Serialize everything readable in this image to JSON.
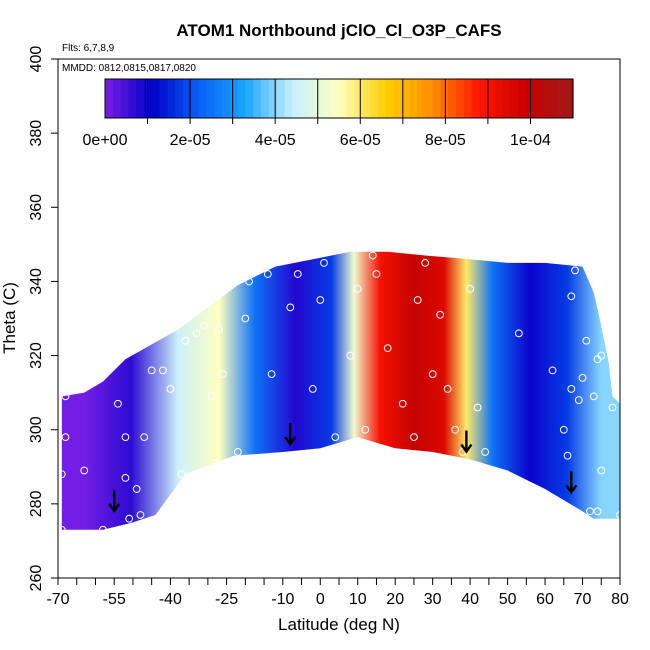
{
  "chart_data": {
    "type": "heatmap",
    "title": "ATOM1 Northbound jClO_Cl_O3P_CAFS",
    "flights_text": "Flts: 6,7,8,9",
    "dates_text": "MMDD: 0812,0815,0817,0820",
    "xlabel": "Latitude (deg N)",
    "ylabel": "Theta (C)",
    "xlim": [
      -70,
      80
    ],
    "ylim": [
      260,
      400
    ],
    "x_ticks": [
      -70,
      -55,
      -40,
      -25,
      -10,
      0,
      10,
      20,
      30,
      40,
      50,
      60,
      70,
      80
    ],
    "y_ticks": [
      260,
      280,
      300,
      320,
      340,
      360,
      380,
      400
    ],
    "colorbar": {
      "min": 0,
      "max": 0.00011,
      "tick_values": [
        0,
        2e-05,
        4e-05,
        6e-05,
        8e-05,
        0.0001
      ],
      "tick_labels": [
        "0e+00",
        "2e-05",
        "4e-05",
        "6e-05",
        "8e-05",
        "1e-04"
      ],
      "colors": [
        "#7a1fe6",
        "#0000c8",
        "#0a5ef5",
        "#19a6ff",
        "#c8f0ff",
        "#ffffc0",
        "#ffd000",
        "#ff8c00",
        "#ff1500",
        "#c80000",
        "#9e1a1a"
      ]
    },
    "domain_outline": {
      "lower_boundary": [
        [
          -69,
          273
        ],
        [
          -58,
          273
        ],
        [
          -50,
          275
        ],
        [
          -44,
          277
        ],
        [
          -36,
          288
        ],
        [
          -23,
          293
        ],
        [
          -10,
          294
        ],
        [
          0,
          295
        ],
        [
          10,
          298
        ],
        [
          20,
          295
        ],
        [
          30,
          294
        ],
        [
          40,
          292
        ],
        [
          50,
          289
        ],
        [
          60,
          284
        ],
        [
          70,
          278
        ],
        [
          73,
          276
        ],
        [
          80,
          276
        ]
      ],
      "upper_boundary": [
        [
          -69,
          309
        ],
        [
          -63,
          310
        ],
        [
          -58,
          313
        ],
        [
          -52,
          319
        ],
        [
          -45,
          323
        ],
        [
          -38,
          327
        ],
        [
          -30,
          333
        ],
        [
          -22,
          339
        ],
        [
          -12,
          344
        ],
        [
          -2,
          346
        ],
        [
          8,
          348
        ],
        [
          18,
          348
        ],
        [
          28,
          347
        ],
        [
          40,
          346
        ],
        [
          50,
          345
        ],
        [
          60,
          345
        ],
        [
          70,
          344
        ],
        [
          73,
          337
        ],
        [
          75,
          328
        ],
        [
          77,
          318
        ],
        [
          78,
          309
        ],
        [
          80,
          307
        ]
      ]
    },
    "field_bands": [
      {
        "x": [
          -69,
          -57
        ],
        "value": 5e-07
      },
      {
        "x": [
          -57,
          -44
        ],
        "value": 7e-06
      },
      {
        "x": [
          -44,
          -32
        ],
        "value": 4.5e-05
      },
      {
        "x": [
          -32,
          -22
        ],
        "value": 5.5e-05
      },
      {
        "x": [
          -22,
          -13
        ],
        "value": 2.5e-05
      },
      {
        "x": [
          -13,
          0
        ],
        "value": 8e-06
      },
      {
        "x": [
          0,
          6
        ],
        "value": 1.8e-05
      },
      {
        "x": [
          6,
          12
        ],
        "value": 5.2e-05
      },
      {
        "x": [
          12,
          20
        ],
        "value": 9e-05
      },
      {
        "x": [
          20,
          30
        ],
        "value": 0.0001
      },
      {
        "x": [
          30,
          36
        ],
        "value": 9.5e-05
      },
      {
        "x": [
          36,
          42
        ],
        "value": 6e-05
      },
      {
        "x": [
          42,
          50
        ],
        "value": 2.5e-05
      },
      {
        "x": [
          50,
          62
        ],
        "value": 1e-05
      },
      {
        "x": [
          62,
          70
        ],
        "value": 1.8e-05
      },
      {
        "x": [
          70,
          80
        ],
        "value": 4e-05
      }
    ],
    "sample_points": [
      [
        -69,
        273
      ],
      [
        -69,
        288
      ],
      [
        -68,
        298
      ],
      [
        -68,
        309
      ],
      [
        -63,
        289
      ],
      [
        -58,
        273
      ],
      [
        -54,
        307
      ],
      [
        -52,
        298
      ],
      [
        -52,
        287
      ],
      [
        -51,
        276
      ],
      [
        -49,
        284
      ],
      [
        -48,
        277
      ],
      [
        -47,
        298
      ],
      [
        -45,
        316
      ],
      [
        -42,
        316
      ],
      [
        -40,
        311
      ],
      [
        -37,
        288
      ],
      [
        -36,
        324
      ],
      [
        -33,
        326
      ],
      [
        -31,
        328
      ],
      [
        -29,
        309
      ],
      [
        -28,
        291
      ],
      [
        -27,
        327
      ],
      [
        -26,
        315
      ],
      [
        -22,
        294
      ],
      [
        -20,
        330
      ],
      [
        -19,
        340
      ],
      [
        -14,
        342
      ],
      [
        -13,
        315
      ],
      [
        -8,
        333
      ],
      [
        -6,
        342
      ],
      [
        -2,
        311
      ],
      [
        0,
        335
      ],
      [
        1,
        345
      ],
      [
        4,
        298
      ],
      [
        8,
        320
      ],
      [
        10,
        338
      ],
      [
        12,
        300
      ],
      [
        14,
        347
      ],
      [
        15,
        342
      ],
      [
        18,
        322
      ],
      [
        22,
        307
      ],
      [
        25,
        298
      ],
      [
        26,
        335
      ],
      [
        28,
        345
      ],
      [
        30,
        315
      ],
      [
        32,
        331
      ],
      [
        34,
        311
      ],
      [
        36,
        300
      ],
      [
        38,
        294
      ],
      [
        40,
        338
      ],
      [
        42,
        306
      ],
      [
        44,
        294
      ],
      [
        53,
        326
      ],
      [
        62,
        316
      ],
      [
        65,
        300
      ],
      [
        66,
        293
      ],
      [
        67,
        336
      ],
      [
        67,
        311
      ],
      [
        68,
        343
      ],
      [
        69,
        308
      ],
      [
        70,
        314
      ],
      [
        71,
        324
      ],
      [
        72,
        278
      ],
      [
        73,
        309
      ],
      [
        74,
        319
      ],
      [
        74,
        278
      ],
      [
        75,
        289
      ],
      [
        75,
        320
      ],
      [
        78,
        306
      ],
      [
        80,
        277
      ]
    ],
    "arrows": [
      [
        -55,
        280
      ],
      [
        -8,
        298
      ],
      [
        39,
        296
      ],
      [
        67,
        285
      ]
    ]
  }
}
